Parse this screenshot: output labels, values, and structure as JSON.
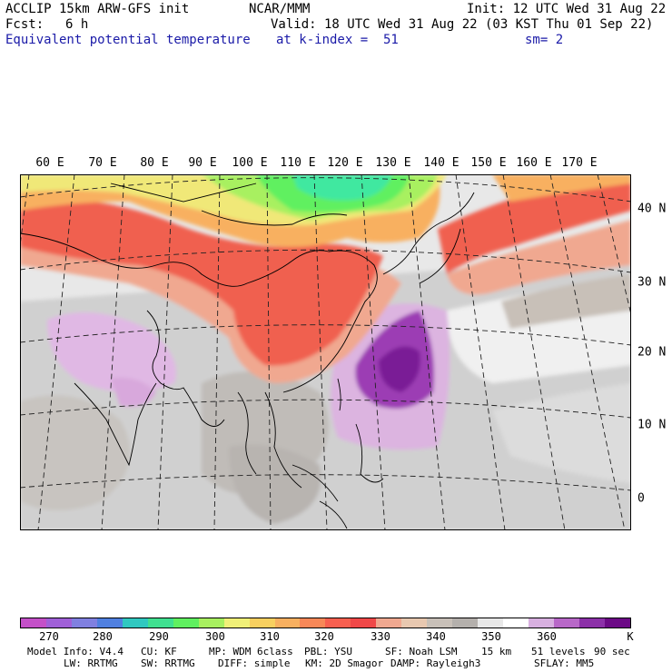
{
  "header": {
    "model": "ACCLIP 15km ARW-GFS init",
    "org": "NCAR/MMM",
    "init": "Init: 12 UTC Wed 31 Aug 22",
    "fcst_label": "Fcst:",
    "fcst_value": "6 h",
    "valid": "Valid: 18 UTC Wed 31 Aug 22 (03 KST Thu 01 Sep 22)",
    "field": "Equivalent potential temperature",
    "level": "at k-index =  51",
    "smooth": "sm= 2"
  },
  "map": {
    "lon_labels": [
      "60 E",
      "70 E",
      "80 E",
      "90 E",
      "100 E",
      "110 E",
      "120 E",
      "130 E",
      "140 E",
      "150 E",
      "160 E",
      "170 E"
    ],
    "lat_labels": [
      "40 N",
      "30 N",
      "20 N",
      "10 N",
      "0"
    ]
  },
  "colorbar": {
    "colors": [
      "#c450c8",
      "#a060d8",
      "#8080e0",
      "#5080e0",
      "#30c8c0",
      "#40e090",
      "#60f060",
      "#a8f060",
      "#f0f078",
      "#f8d060",
      "#f8b060",
      "#f88858",
      "#f86050",
      "#f04848",
      "#f0a890",
      "#e8c8b0",
      "#c8c0b8",
      "#b4b0ac",
      "#e8e8e8",
      "#ffffff",
      "#d8b0e0",
      "#b868c8",
      "#8c30a8",
      "#6c0a86"
    ],
    "labels": [
      "270",
      "280",
      "290",
      "300",
      "310",
      "320",
      "330",
      "340",
      "350",
      "360",
      "K"
    ]
  },
  "footer": {
    "line1": [
      "Model Info: V4.4",
      "CU: KF",
      "MP: WDM 6class",
      "PBL: YSU",
      "SF: Noah LSM",
      "15 km",
      "51 levels",
      "90 sec"
    ],
    "line2": [
      "LW: RRTMG",
      "SW: RRTMG",
      "DIFF: simple",
      "KM: 2D Smagor",
      "DAMP: Rayleigh3",
      "SFLAY: MM5"
    ]
  }
}
